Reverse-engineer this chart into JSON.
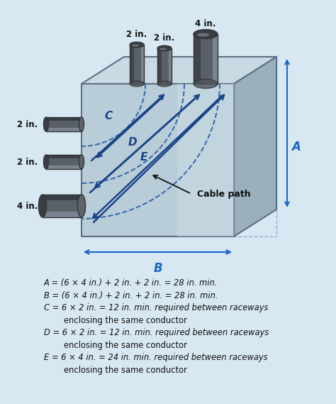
{
  "bg_color": "#d8e8f2",
  "box_front_color": "#b8cdd8",
  "box_top_color": "#c8dae3",
  "box_right_color": "#9ab0bc",
  "box_edge_color": "#607080",
  "pipe_body_color": "#5a6068",
  "pipe_highlight_color": "#7a8490",
  "pipe_dark_color": "#3a4048",
  "arrow_color": "#1a4488",
  "dim_color": "#1a66cc",
  "dashed_color": "#3366aa",
  "text_color": "#111111",
  "formula_color": "#111111",
  "formulas_line1": "A = (6 × 4 in.) + 2 in. + 2 in. = 28 in. min.",
  "formulas_line2": "B = (6 × 4 in.) + 2 in. + 2 in. = 28 in. min.",
  "formulas_line3": "C = 6 × 2 in. = 12 in. min. required between raceways",
  "formulas_line3b": "enclosing the same conductor",
  "formulas_line4": "D = 6 × 2 in. = 12 in. min. required between raceways",
  "formulas_line4b": "enclosing the same conductor",
  "formulas_line5": "E = 6 × 4 in. = 24 in. min. required between raceways",
  "formulas_line5b": "enclosing the same conductor",
  "left_labels": [
    "2 in.",
    "2 in.",
    "4 in."
  ],
  "top_labels": [
    "2 in.",
    "2 in.",
    "4 in."
  ],
  "label_A": "A",
  "label_B": "B",
  "label_C": "C",
  "label_D": "D",
  "label_E": "E",
  "cable_path_label": "Cable path"
}
